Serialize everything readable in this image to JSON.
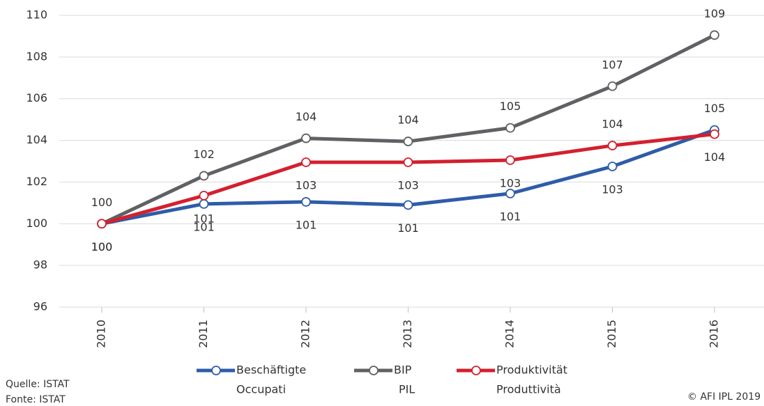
{
  "chart_data": {
    "type": "line",
    "categories": [
      "2010",
      "2011",
      "2012",
      "2013",
      "2014",
      "2015",
      "2016"
    ],
    "series": [
      {
        "name": "BIP",
        "name_alt": "PIL",
        "color": "#5f6164",
        "values": [
          100,
          102.3,
          104.1,
          103.95,
          104.6,
          106.6,
          109.05
        ],
        "value_labels": [
          "100",
          "102",
          "104",
          "104",
          "105",
          "107",
          "109"
        ]
      },
      {
        "name": "Beschäftigte",
        "name_alt": "Occupati",
        "color": "#2e5ca8",
        "values": [
          100,
          100.95,
          101.05,
          100.9,
          101.45,
          102.75,
          104.5
        ],
        "value_labels": [
          "100",
          "101",
          "101",
          "101",
          "101",
          "103",
          "105"
        ]
      },
      {
        "name": "Produktivität",
        "name_alt": "Produttività",
        "color": "#d3202f",
        "values": [
          100,
          101.35,
          102.95,
          102.95,
          103.05,
          103.75,
          104.3
        ],
        "value_labels": [
          "100",
          "101",
          "103",
          "103",
          "103",
          "104",
          "104"
        ]
      }
    ],
    "ylim": [
      96,
      110
    ],
    "yticks": [
      96,
      98,
      100,
      102,
      104,
      106,
      108,
      110
    ],
    "grid": true,
    "source": [
      "Quelle: ISTAT",
      "Fonte: ISTAT"
    ],
    "copyright": "© AFI IPL 2019"
  }
}
